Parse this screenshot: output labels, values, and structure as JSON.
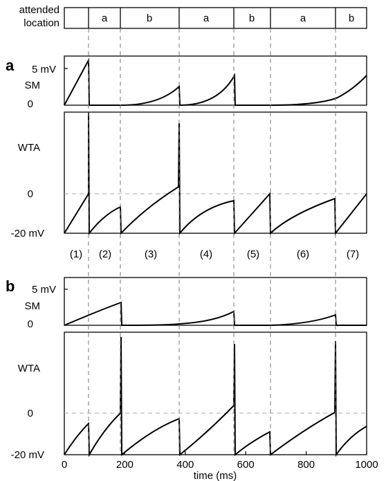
{
  "header": {
    "label_line1": "attended",
    "label_line2": "location",
    "segments": [
      "a",
      "b",
      "a",
      "b",
      "a",
      "b"
    ]
  },
  "panel_a": {
    "letter": "a",
    "sm_label": "SM",
    "sm_top_tick": "5 mV",
    "sm_bottom_tick": "0",
    "wta_label": "WTA",
    "wta_zero_tick": "0",
    "wta_bottom_tick": "-20 mV",
    "intervals": [
      "(1)",
      "(2)",
      "(3)",
      "(4)",
      "(5)",
      "(6)",
      "(7)"
    ]
  },
  "panel_b": {
    "letter": "b",
    "sm_label": "SM",
    "sm_top_tick": "5 mV",
    "sm_bottom_tick": "0",
    "wta_label": "WTA",
    "wta_zero_tick": "0",
    "wta_bottom_tick": "-20 mV"
  },
  "chart_data": [
    {
      "type": "line",
      "panel": "a",
      "xlabel": "",
      "ylabel": "SM",
      "xlim": [
        0,
        1000
      ],
      "ylim": [
        0,
        5
      ],
      "x_breaks": [
        80,
        380,
        560,
        890
      ],
      "series": [
        {
          "x": [
            0,
            80,
            80,
            180,
            260,
            330,
            380,
            380,
            450,
            500,
            560,
            560,
            650,
            750,
            820,
            890,
            890,
            950,
            1000
          ],
          "values": [
            0,
            6,
            0,
            0,
            0.2,
            0.8,
            2.2,
            0,
            0.4,
            1.4,
            3.8,
            0,
            0,
            0,
            0.2,
            0.7,
            0,
            1.8,
            3.9
          ]
        }
      ]
    },
    {
      "type": "line",
      "panel": "a",
      "xlabel": "",
      "ylabel": "WTA",
      "xlim": [
        0,
        1000
      ],
      "ylim": [
        -20,
        0
      ],
      "spike_times": [
        80,
        380,
        560,
        890
      ],
      "series": [
        {
          "x": [
            0,
            80,
            80,
            130,
            180,
            180,
            280,
            380,
            380,
            470,
            560,
            560,
            680,
            680,
            780,
            890,
            890,
            1000
          ],
          "values": [
            -20,
            0,
            -20,
            -12,
            -8.6,
            -20,
            -10,
            -3.5,
            -20,
            -11,
            -8.3,
            -20,
            0,
            -20,
            -10,
            -3.6,
            -20,
            0
          ]
        }
      ]
    },
    {
      "type": "line",
      "panel": "b",
      "xlabel": "",
      "ylabel": "SM",
      "xlim": [
        0,
        1000
      ],
      "ylim": [
        0,
        5
      ],
      "x_breaks": [
        180,
        560,
        890
      ],
      "series": [
        {
          "x": [
            0,
            80,
            180,
            180,
            300,
            450,
            560,
            560,
            700,
            820,
            890,
            890,
            1000
          ],
          "values": [
            0,
            1.6,
            3.2,
            0,
            0,
            0.4,
            1.8,
            0,
            0,
            0.5,
            1.5,
            0,
            0
          ]
        }
      ]
    },
    {
      "type": "line",
      "panel": "b",
      "xlabel": "time (ms)",
      "ylabel": "WTA",
      "xlim": [
        0,
        1000
      ],
      "ylim": [
        -20,
        0
      ],
      "xticks": [
        0,
        200,
        400,
        600,
        800,
        1000
      ],
      "spike_times": [
        180,
        560,
        890
      ],
      "series": [
        {
          "x": [
            0,
            80,
            80,
            180,
            180,
            280,
            380,
            380,
            470,
            560,
            560,
            620,
            680,
            680,
            780,
            890,
            890,
            1000
          ],
          "values": [
            -20,
            -10,
            -20,
            0,
            -20,
            -11,
            -7.5,
            -20,
            -10,
            -5.4,
            -20,
            -12,
            -8.2,
            -20,
            -5,
            0,
            -20,
            -10
          ]
        }
      ]
    }
  ]
}
